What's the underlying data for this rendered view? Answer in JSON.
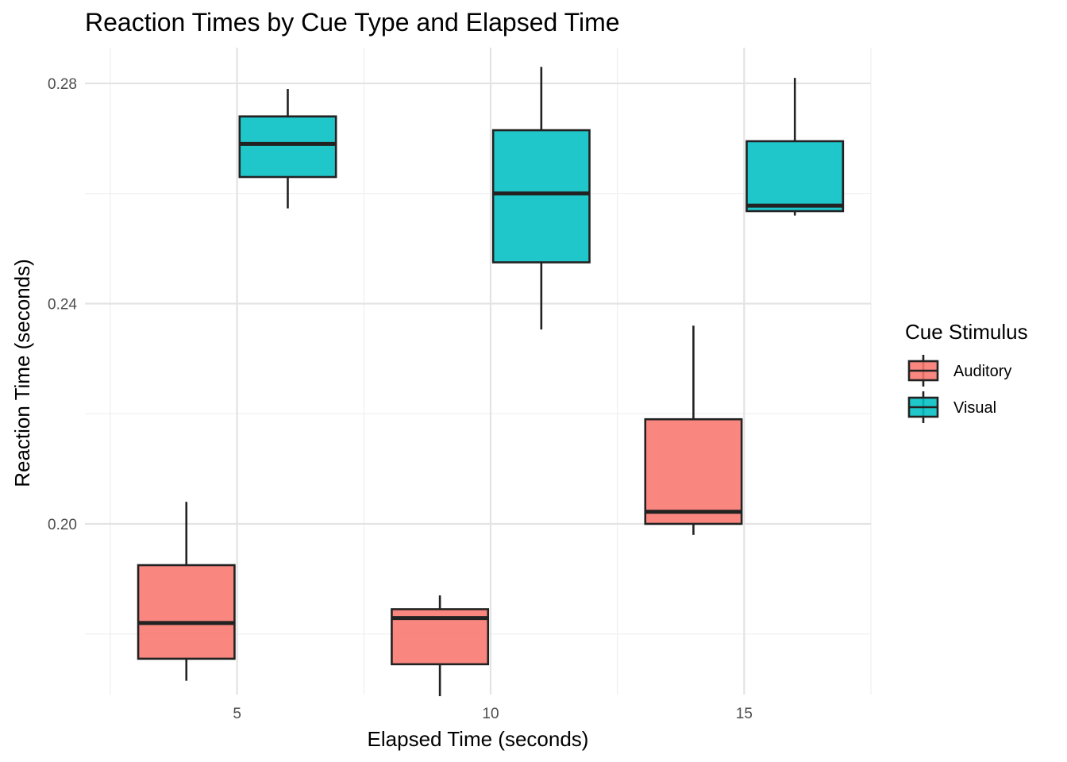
{
  "chart_data": {
    "type": "boxplot",
    "title": "Reaction Times by Cue Type and Elapsed Time",
    "xlabel": "Elapsed Time (seconds)",
    "ylabel": "Reaction Time (seconds)",
    "x_ticks": [
      5,
      10,
      15
    ],
    "y_ticks": [
      0.2,
      0.24,
      0.28
    ],
    "y_tick_labels": [
      "0.20",
      "0.24",
      "0.28"
    ],
    "xlim": [
      2,
      17.5
    ],
    "ylim": [
      0.169,
      0.2865
    ],
    "grid": true,
    "legend": {
      "title": "Cue Stimulus",
      "position": "right",
      "entries": [
        {
          "label": "Auditory",
          "color": "#F8766D"
        },
        {
          "label": "Visual",
          "color": "#00BFC4"
        }
      ]
    },
    "series": [
      {
        "name": "Auditory",
        "color": "#F8766D",
        "boxes": [
          {
            "x": 4,
            "whisker_low": 0.1715,
            "q1": 0.1755,
            "median": 0.182,
            "q3": 0.1925,
            "whisker_high": 0.204
          },
          {
            "x": 9,
            "whisker_low": 0.1687,
            "q1": 0.1745,
            "median": 0.1829,
            "q3": 0.1845,
            "whisker_high": 0.187
          },
          {
            "x": 14,
            "whisker_low": 0.198,
            "q1": 0.2,
            "median": 0.2022,
            "q3": 0.219,
            "whisker_high": 0.236
          }
        ]
      },
      {
        "name": "Visual",
        "color": "#00BFC4",
        "boxes": [
          {
            "x": 6,
            "whisker_low": 0.2573,
            "q1": 0.263,
            "median": 0.269,
            "q3": 0.274,
            "whisker_high": 0.279
          },
          {
            "x": 11,
            "whisker_low": 0.2353,
            "q1": 0.2475,
            "median": 0.26,
            "q3": 0.2715,
            "whisker_high": 0.283
          },
          {
            "x": 16,
            "whisker_low": 0.256,
            "q1": 0.2568,
            "median": 0.2578,
            "q3": 0.2695,
            "whisker_high": 0.281
          }
        ]
      }
    ]
  }
}
